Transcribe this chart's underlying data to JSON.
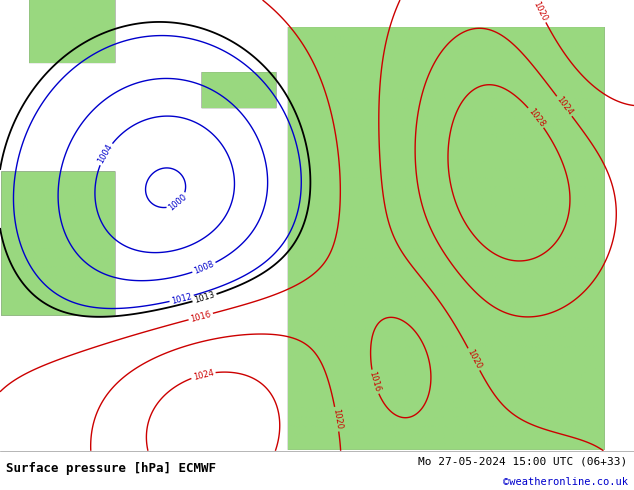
{
  "title_left": "Surface pressure [hPa] ECMWF",
  "title_right": "Mo 27-05-2024 15:00 UTC (06+33)",
  "watermark": "©weatheronline.co.uk",
  "bg_ocean": "#d8e8f0",
  "bg_land_low": "#c8e0a0",
  "bg_land_high": "#e0e8d0",
  "contour_color_low": "#0000cc",
  "contour_color_high": "#cc0000",
  "contour_color_13": "#000000",
  "bottom_bar_color": "#f0f0f0",
  "bottom_text_color": "#000000",
  "watermark_color": "#0000cc",
  "figsize": [
    6.34,
    4.9
  ],
  "dpi": 100
}
